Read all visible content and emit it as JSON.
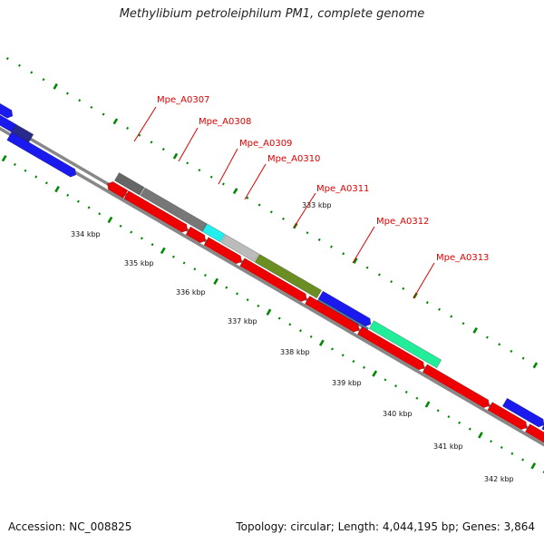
{
  "title": "Methylibium petroleiphilum PM1, complete genome",
  "footer": {
    "accession": "Accession: NC_008825",
    "info": "Topology: circular; Length: 4,044,195 bp; Genes: 3,864"
  },
  "scale_labels": [
    "333 kbp",
    "334 kbp",
    "335 kbp",
    "336 kbp",
    "337 kbp",
    "338 kbp",
    "339 kbp",
    "340 kbp",
    "341 kbp",
    "342 kbp"
  ],
  "gene_labels": [
    "Mpe_A0307",
    "Mpe_A0308",
    "Mpe_A0309",
    "Mpe_A0310",
    "Mpe_A0311",
    "Mpe_A0312",
    "Mpe_A0313"
  ],
  "colors": {
    "forward_track_blue": "#1a1aee",
    "reverse_track_red": "#ee0000",
    "gene_grey_dark": "#666666",
    "gene_grey_mid": "#777777",
    "gene_cyan": "#22eeee",
    "gene_light_grey": "#bbbbbb",
    "gene_olive": "#6b8e23",
    "gene_steel_blue": "#4682b4",
    "gene_spring_green": "#22ee99",
    "backbone": "#888888",
    "ticks": "#008800",
    "label_red": "#dd0000"
  }
}
